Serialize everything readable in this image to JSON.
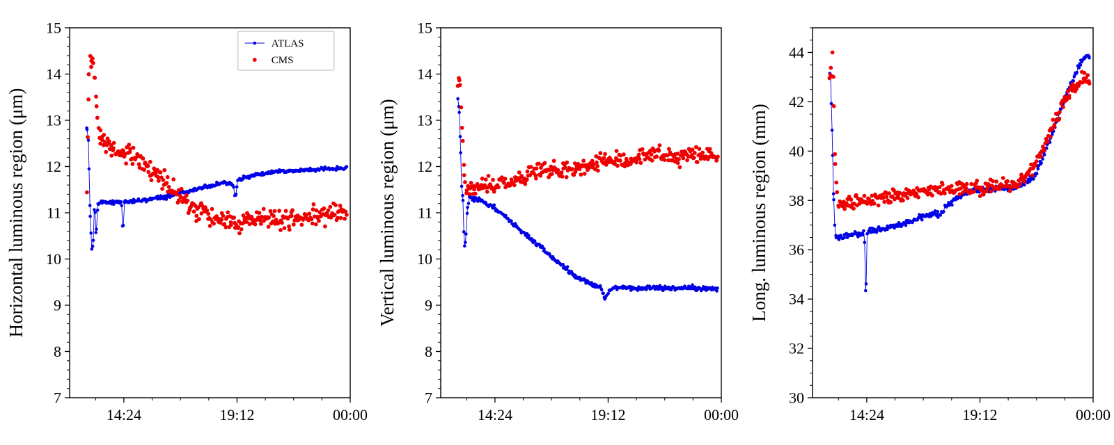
{
  "figure": {
    "background": "#ffffff"
  },
  "legend": {
    "items": [
      {
        "label": "ATLAS",
        "color": "#0000e6",
        "line": true
      },
      {
        "label": "CMS",
        "color": "#ee0000",
        "line": false
      }
    ]
  },
  "chart_data": [
    {
      "type": "scatter",
      "title": "",
      "xlabel": "",
      "ylabel": "Horizontal luminous region (μm)",
      "ylim": [
        7,
        15
      ],
      "yticks": [
        7,
        8,
        9,
        10,
        11,
        12,
        13,
        14,
        15
      ],
      "y_minor_step": 0.2,
      "xlim": [
        12.1,
        24.0
      ],
      "xticks": [
        {
          "v": 14.4,
          "label": "14:24"
        },
        {
          "v": 19.2,
          "label": "19:12"
        },
        {
          "v": 24.0,
          "label": "00:00"
        }
      ],
      "x_minor_step": 1.2,
      "grid": false,
      "show_legend": true,
      "legend_position": "upper right",
      "series": [
        {
          "name": "ATLAS",
          "color": "#0000e6",
          "line": true,
          "marker_r": 2.3,
          "n": 340,
          "jitter": 0.035,
          "anchors": [
            [
              12.82,
              12.85
            ],
            [
              12.86,
              12.72
            ],
            [
              12.9,
              12.55
            ],
            [
              12.94,
              11.55
            ],
            [
              12.98,
              10.85
            ],
            [
              13.04,
              10.22
            ],
            [
              13.1,
              10.3
            ],
            [
              13.16,
              11.3
            ],
            [
              13.22,
              10.5
            ],
            [
              13.3,
              11.18
            ],
            [
              13.5,
              11.24
            ],
            [
              13.9,
              11.22
            ],
            [
              14.3,
              11.25
            ],
            [
              14.36,
              10.55
            ],
            [
              14.42,
              11.24
            ],
            [
              15.0,
              11.26
            ],
            [
              15.6,
              11.3
            ],
            [
              16.2,
              11.35
            ],
            [
              16.8,
              11.42
            ],
            [
              17.4,
              11.5
            ],
            [
              18.0,
              11.58
            ],
            [
              18.6,
              11.64
            ],
            [
              19.04,
              11.62
            ],
            [
              19.12,
              11.32
            ],
            [
              19.22,
              11.68
            ],
            [
              19.6,
              11.78
            ],
            [
              20.0,
              11.83
            ],
            [
              20.5,
              11.87
            ],
            [
              21.0,
              11.9
            ],
            [
              21.5,
              11.89
            ],
            [
              22.0,
              11.92
            ],
            [
              22.5,
              11.93
            ],
            [
              23.0,
              11.95
            ],
            [
              23.5,
              11.96
            ],
            [
              23.85,
              11.97
            ]
          ]
        },
        {
          "name": "CMS",
          "color": "#ee0000",
          "line": false,
          "marker_r": 2.9,
          "n": 310,
          "jitter": 0.17,
          "anchors": [
            [
              12.82,
              10.95
            ],
            [
              12.92,
              14.15
            ],
            [
              13.0,
              14.3
            ],
            [
              13.08,
              14.5
            ],
            [
              13.16,
              13.95
            ],
            [
              13.26,
              13.05
            ],
            [
              13.36,
              12.65
            ],
            [
              13.6,
              12.45
            ],
            [
              14.0,
              12.35
            ],
            [
              14.4,
              12.3
            ],
            [
              15.0,
              12.12
            ],
            [
              15.6,
              11.92
            ],
            [
              16.2,
              11.62
            ],
            [
              16.8,
              11.4
            ],
            [
              17.4,
              11.12
            ],
            [
              18.0,
              10.98
            ],
            [
              18.6,
              10.9
            ],
            [
              19.2,
              10.78
            ],
            [
              19.8,
              10.9
            ],
            [
              20.4,
              10.85
            ],
            [
              21.0,
              10.9
            ],
            [
              21.6,
              10.86
            ],
            [
              22.2,
              10.95
            ],
            [
              22.8,
              10.9
            ],
            [
              23.4,
              11.0
            ],
            [
              23.85,
              11.02
            ]
          ]
        }
      ]
    },
    {
      "type": "scatter",
      "title": "",
      "xlabel": "",
      "ylabel": "Vertical luminous region (μm)",
      "ylim": [
        7,
        15
      ],
      "yticks": [
        7,
        8,
        9,
        10,
        11,
        12,
        13,
        14,
        15
      ],
      "y_minor_step": 0.2,
      "xlim": [
        12.1,
        24.0
      ],
      "xticks": [
        {
          "v": 14.4,
          "label": "14:24"
        },
        {
          "v": 19.2,
          "label": "19:12"
        },
        {
          "v": 24.0,
          "label": "00:00"
        }
      ],
      "x_minor_step": 1.2,
      "grid": false,
      "show_legend": false,
      "series": [
        {
          "name": "ATLAS",
          "color": "#0000e6",
          "line": true,
          "marker_r": 2.3,
          "n": 340,
          "jitter": 0.04,
          "anchors": [
            [
              12.82,
              13.45
            ],
            [
              12.86,
              13.3
            ],
            [
              12.9,
              13.08
            ],
            [
              12.94,
              12.4
            ],
            [
              12.98,
              11.6
            ],
            [
              13.04,
              11.3
            ],
            [
              13.1,
              10.25
            ],
            [
              13.16,
              10.42
            ],
            [
              13.24,
              11.1
            ],
            [
              13.32,
              11.35
            ],
            [
              13.5,
              11.3
            ],
            [
              13.9,
              11.25
            ],
            [
              14.4,
              11.1
            ],
            [
              14.9,
              10.9
            ],
            [
              15.4,
              10.65
            ],
            [
              15.9,
              10.45
            ],
            [
              16.4,
              10.25
            ],
            [
              16.9,
              10.0
            ],
            [
              17.4,
              9.8
            ],
            [
              17.9,
              9.6
            ],
            [
              18.4,
              9.48
            ],
            [
              18.9,
              9.38
            ],
            [
              19.08,
              9.15
            ],
            [
              19.3,
              9.35
            ],
            [
              19.8,
              9.4
            ],
            [
              20.3,
              9.35
            ],
            [
              20.8,
              9.38
            ],
            [
              21.3,
              9.36
            ],
            [
              21.8,
              9.38
            ],
            [
              22.3,
              9.35
            ],
            [
              22.8,
              9.38
            ],
            [
              23.3,
              9.35
            ],
            [
              23.85,
              9.35
            ]
          ]
        },
        {
          "name": "CMS",
          "color": "#ee0000",
          "line": false,
          "marker_r": 2.9,
          "n": 310,
          "jitter": 0.14,
          "anchors": [
            [
              12.82,
              13.55
            ],
            [
              12.88,
              14.0
            ],
            [
              12.94,
              13.5
            ],
            [
              13.0,
              12.9
            ],
            [
              13.06,
              12.1
            ],
            [
              13.14,
              11.6
            ],
            [
              13.25,
              11.5
            ],
            [
              13.5,
              11.55
            ],
            [
              13.9,
              11.6
            ],
            [
              14.4,
              11.62
            ],
            [
              15.0,
              11.7
            ],
            [
              15.6,
              11.78
            ],
            [
              16.2,
              11.85
            ],
            [
              16.8,
              11.9
            ],
            [
              17.4,
              11.95
            ],
            [
              18.0,
              12.0
            ],
            [
              18.6,
              12.05
            ],
            [
              19.2,
              12.1
            ],
            [
              19.8,
              12.15
            ],
            [
              20.4,
              12.15
            ],
            [
              21.0,
              12.3
            ],
            [
              21.6,
              12.25
            ],
            [
              22.2,
              12.2
            ],
            [
              22.8,
              12.25
            ],
            [
              23.4,
              12.25
            ],
            [
              23.85,
              12.2
            ]
          ]
        }
      ]
    },
    {
      "type": "scatter",
      "title": "",
      "xlabel": "",
      "ylabel": "Long. luminous region (mm)",
      "ylim": [
        30,
        45
      ],
      "yticks": [
        30,
        32,
        34,
        36,
        38,
        40,
        42,
        44
      ],
      "y_minor_step": 0.5,
      "xlim": [
        12.1,
        24.0
      ],
      "xticks": [
        {
          "v": 14.4,
          "label": "14:24"
        },
        {
          "v": 19.2,
          "label": "19:12"
        },
        {
          "v": 24.0,
          "label": "00:00"
        }
      ],
      "x_minor_step": 1.2,
      "grid": false,
      "show_legend": false,
      "series": [
        {
          "name": "ATLAS",
          "color": "#0000e6",
          "line": true,
          "marker_r": 2.3,
          "n": 340,
          "jitter": 0.1,
          "anchors": [
            [
              12.82,
              43.2
            ],
            [
              12.86,
              43.1
            ],
            [
              12.9,
              42.0
            ],
            [
              12.94,
              40.5
            ],
            [
              12.98,
              38.8
            ],
            [
              13.02,
              37.3
            ],
            [
              13.08,
              36.6
            ],
            [
              13.2,
              36.5
            ],
            [
              13.4,
              36.55
            ],
            [
              13.7,
              36.6
            ],
            [
              14.0,
              36.65
            ],
            [
              14.3,
              36.7
            ],
            [
              14.36,
              34.0
            ],
            [
              14.42,
              36.7
            ],
            [
              14.8,
              36.8
            ],
            [
              15.3,
              36.9
            ],
            [
              15.8,
              37.0
            ],
            [
              16.3,
              37.15
            ],
            [
              16.8,
              37.35
            ],
            [
              17.3,
              37.5
            ],
            [
              17.5,
              37.35
            ],
            [
              17.7,
              37.7
            ],
            [
              18.2,
              38.1
            ],
            [
              18.7,
              38.35
            ],
            [
              19.2,
              38.4
            ],
            [
              19.7,
              38.45
            ],
            [
              20.2,
              38.5
            ],
            [
              20.7,
              38.55
            ],
            [
              21.1,
              38.7
            ],
            [
              21.5,
              39.0
            ],
            [
              21.9,
              39.8
            ],
            [
              22.3,
              40.8
            ],
            [
              22.7,
              41.9
            ],
            [
              23.0,
              42.6
            ],
            [
              23.3,
              43.2
            ],
            [
              23.55,
              43.7
            ],
            [
              23.75,
              43.9
            ],
            [
              23.85,
              43.85
            ]
          ]
        },
        {
          "name": "CMS",
          "color": "#ee0000",
          "line": false,
          "marker_r": 2.9,
          "n": 300,
          "jitter": 0.22,
          "anchors": [
            [
              12.82,
              43.1
            ],
            [
              12.9,
              43.2
            ],
            [
              12.96,
              44.3
            ],
            [
              13.02,
              41.0
            ],
            [
              13.08,
              39.0
            ],
            [
              13.16,
              38.0
            ],
            [
              13.3,
              37.8
            ],
            [
              13.6,
              37.85
            ],
            [
              14.0,
              37.95
            ],
            [
              14.4,
              38.0
            ],
            [
              15.0,
              38.1
            ],
            [
              15.6,
              38.2
            ],
            [
              16.2,
              38.25
            ],
            [
              16.8,
              38.35
            ],
            [
              17.4,
              38.45
            ],
            [
              18.0,
              38.5
            ],
            [
              18.6,
              38.5
            ],
            [
              19.2,
              38.5
            ],
            [
              19.8,
              38.55
            ],
            [
              20.4,
              38.6
            ],
            [
              20.9,
              38.7
            ],
            [
              21.3,
              39.1
            ],
            [
              21.7,
              39.7
            ],
            [
              22.1,
              40.6
            ],
            [
              22.5,
              41.5
            ],
            [
              22.9,
              42.2
            ],
            [
              23.2,
              42.6
            ],
            [
              23.5,
              42.9
            ],
            [
              23.85,
              42.8
            ]
          ]
        }
      ]
    }
  ]
}
